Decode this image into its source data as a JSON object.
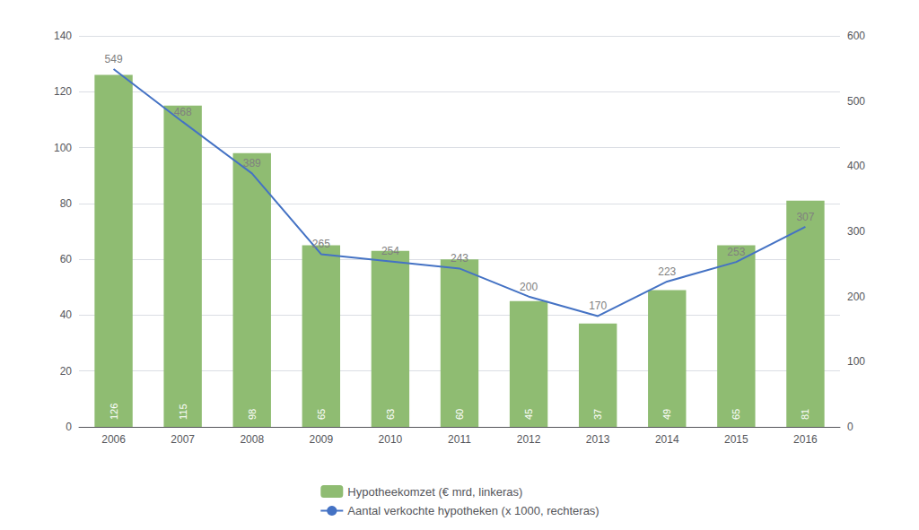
{
  "chart_data": {
    "type": "bar",
    "categories": [
      "2006",
      "2007",
      "2008",
      "2009",
      "2010",
      "2011",
      "2012",
      "2013",
      "2014",
      "2015",
      "2016"
    ],
    "series": [
      {
        "name": "Hypotheekomzet (€ mrd, linkeras)",
        "type": "bar",
        "color": "#8FBC72",
        "values": [
          126,
          115,
          98,
          65,
          63,
          60,
          45,
          37,
          49,
          65,
          81
        ]
      },
      {
        "name": "Aantal verkochte hypotheken (x 1000, rechteras)",
        "type": "line",
        "color": "#4472C4",
        "axis": "y2",
        "values": [
          549,
          468,
          389,
          265,
          254,
          243,
          200,
          170,
          223,
          253,
          307
        ]
      }
    ],
    "ylim": [
      0,
      140
    ],
    "yticks": [
      0,
      20,
      40,
      60,
      80,
      100,
      120,
      140
    ],
    "y2lim": [
      0,
      600
    ],
    "y2ticks": [
      0,
      100,
      200,
      300,
      400,
      500,
      600
    ],
    "grid": true,
    "legend": "bottom",
    "data_labels": true
  }
}
